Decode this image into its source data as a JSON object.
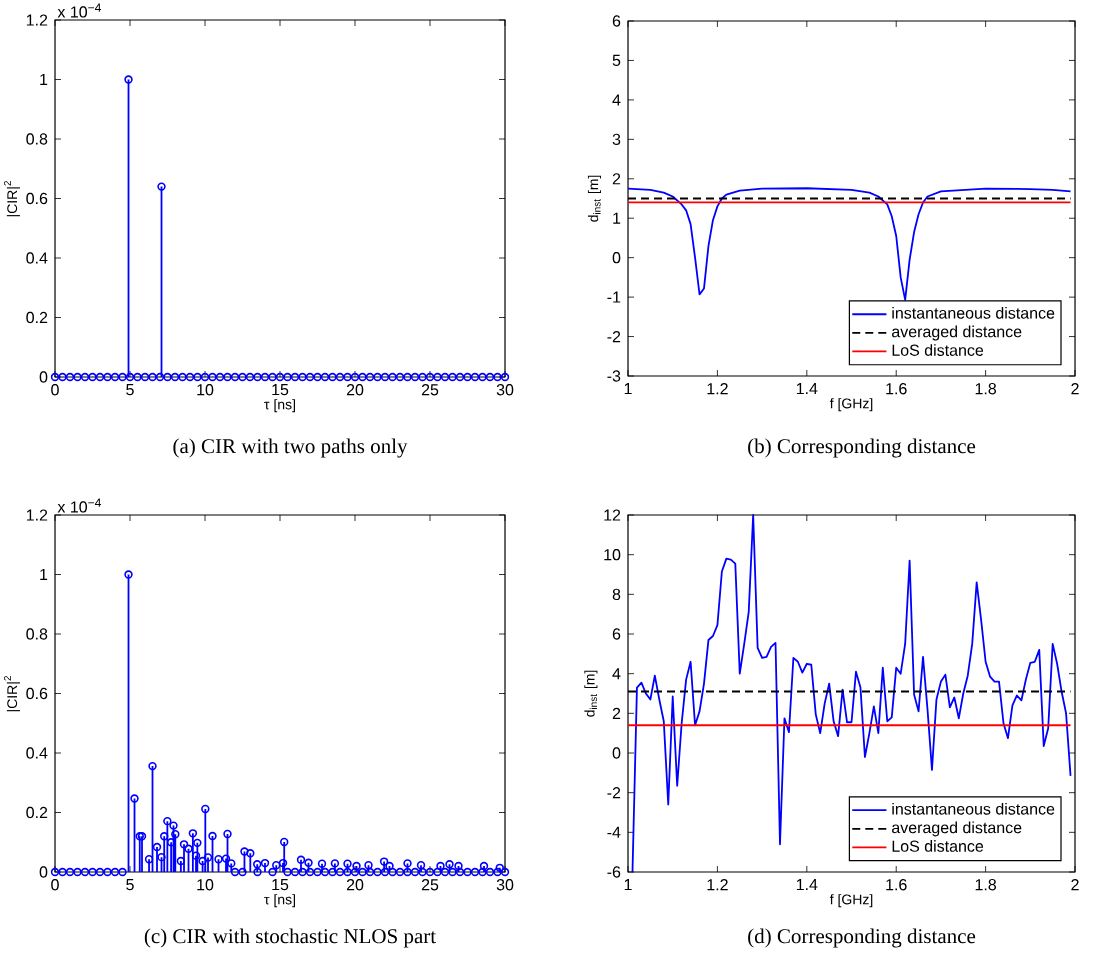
{
  "chart_data": [
    {
      "type": "lollipop",
      "xlabel": "τ [ns]",
      "ylabel": "|CIR|$^{2}$",
      "annotations": [
        "x 10$^{−4}$",
        "(a)  CIR with two paths only"
      ],
      "color": "#0000ff",
      "marker": "circle",
      "xlim": [
        0,
        30
      ],
      "ylim": [
        0,
        1.2
      ],
      "xticks": [
        0,
        5,
        10,
        15,
        20,
        25,
        30
      ],
      "yticks": [
        0,
        0.2,
        0.4,
        0.6,
        0.8,
        1,
        1.2
      ],
      "x": [
        0,
        0.5,
        1,
        1.5,
        2,
        2.5,
        3,
        3.5,
        4,
        4.5,
        4.9,
        5,
        5.5,
        6,
        6.5,
        7,
        7.1,
        7.5,
        8,
        8.5,
        9,
        9.5,
        10,
        10.5,
        11,
        11.5,
        12,
        12.5,
        13,
        13.5,
        14,
        14.5,
        15,
        15.5,
        16,
        16.5,
        17,
        17.5,
        18,
        18.5,
        19,
        19.5,
        20,
        20.5,
        21,
        21.5,
        22,
        22.5,
        23,
        23.5,
        24,
        24.5,
        25,
        25.5,
        26,
        26.5,
        27,
        27.5,
        28,
        28.5,
        29,
        29.5,
        30
      ],
      "values": [
        0,
        0,
        0,
        0,
        0,
        0,
        0,
        0,
        0,
        0,
        1,
        0,
        0,
        0,
        0,
        0,
        0.64,
        0,
        0,
        0,
        0,
        0,
        0,
        0,
        0,
        0,
        0,
        0,
        0,
        0,
        0,
        0,
        0,
        0,
        0,
        0,
        0,
        0,
        0,
        0,
        0,
        0,
        0,
        0,
        0,
        0,
        0,
        0,
        0,
        0,
        0,
        0,
        0,
        0,
        0,
        0,
        0,
        0,
        0,
        0,
        0,
        0,
        0
      ]
    },
    {
      "type": "line",
      "xlabel": "f [GHz]",
      "ylabel": "d$_{inst}$ [m]",
      "annotations": [
        "(b)  Corresponding distance"
      ],
      "legend": "bottom right",
      "xlim": [
        1,
        2
      ],
      "ylim": [
        -3,
        6
      ],
      "xticks": [
        1,
        1.2,
        1.4,
        1.6,
        1.8,
        2
      ],
      "yticks": [
        -3,
        -2,
        -1,
        0,
        1,
        2,
        3,
        4,
        5,
        6
      ],
      "series": [
        {
          "name": "instantaneous distance",
          "color": "#0000ff",
          "line_style": "solid",
          "x": [
            1,
            1.05,
            1.08,
            1.1,
            1.12,
            1.13,
            1.14,
            1.15,
            1.16,
            1.17,
            1.18,
            1.19,
            1.2,
            1.21,
            1.22,
            1.25,
            1.3,
            1.4,
            1.5,
            1.54,
            1.56,
            1.58,
            1.59,
            1.6,
            1.61,
            1.62,
            1.63,
            1.64,
            1.65,
            1.66,
            1.67,
            1.7,
            1.8,
            1.9,
            1.95,
            1.99
          ],
          "values": [
            1.75,
            1.72,
            1.65,
            1.55,
            1.35,
            1.2,
            0.85,
            0,
            -0.93,
            -0.78,
            0.3,
            0.95,
            1.3,
            1.5,
            1.6,
            1.7,
            1.75,
            1.76,
            1.72,
            1.65,
            1.55,
            1.35,
            1.05,
            0.55,
            -0.5,
            -1.07,
            -0.05,
            0.65,
            1.1,
            1.4,
            1.55,
            1.68,
            1.75,
            1.74,
            1.72,
            1.68
          ]
        },
        {
          "name": "averaged distance",
          "color": "#000000",
          "line_style": "dashed",
          "x": [
            1,
            1.99
          ],
          "values": [
            1.5,
            1.5
          ]
        },
        {
          "name": "LoS distance",
          "color": "#ff0000",
          "line_style": "solid",
          "x": [
            1,
            1.99
          ],
          "values": [
            1.4,
            1.4
          ]
        }
      ]
    },
    {
      "type": "lollipop",
      "xlabel": "τ [ns]",
      "ylabel": "|CIR|$^{2}$",
      "annotations": [
        "x 10$^{−4}$",
        "(c)  CIR with stochastic NLOS part"
      ],
      "color": "#0000ff",
      "marker": "circle",
      "xlim": [
        0,
        30
      ],
      "ylim": [
        0,
        1.2
      ],
      "xticks": [
        0,
        5,
        10,
        15,
        20,
        25,
        30
      ],
      "yticks": [
        0,
        0.2,
        0.4,
        0.6,
        0.8,
        1,
        1.2
      ],
      "x": [
        0,
        0.5,
        1,
        1.5,
        2,
        2.5,
        3,
        3.5,
        4,
        4.5,
        4.9,
        5.3,
        5.65,
        5.8,
        6.27,
        6.5,
        6.8,
        7.1,
        7.28,
        7.49,
        7.74,
        7.9,
        8.02,
        8.39,
        8.6,
        8.9,
        9.19,
        9.4,
        9.49,
        9.84,
        10.02,
        10.2,
        10.5,
        10.9,
        11.4,
        11.5,
        11.75,
        12.63,
        13.02,
        13.48,
        14,
        14.75,
        15.2,
        15.28,
        16.4,
        16.9,
        17.8,
        18.66,
        19.5,
        20.1,
        20.9,
        21.94,
        22.3,
        23.5,
        24.4,
        25.7,
        26.3,
        26.9,
        28.6,
        29.65,
        12,
        12.5,
        13.5,
        14.5,
        15.5,
        16,
        16.5,
        17,
        17.5,
        18,
        18.5,
        19,
        19.5,
        20,
        20.5,
        21,
        21.5,
        22,
        22.5,
        23,
        23.5,
        24,
        24.5,
        25,
        25.5,
        26,
        26.5,
        27,
        27.5,
        28,
        28.5,
        29,
        29.5,
        30
      ],
      "values": [
        0,
        0,
        0,
        0,
        0,
        0,
        0,
        0,
        0,
        0,
        1,
        0.247,
        0.12,
        0.12,
        0.043,
        0.356,
        0.084,
        0.05,
        0.12,
        0.171,
        0.1,
        0.156,
        0.127,
        0.037,
        0.093,
        0.078,
        0.13,
        0.055,
        0.098,
        0.037,
        0.212,
        0.049,
        0.121,
        0.043,
        0.045,
        0.128,
        0.029,
        0.069,
        0.063,
        0.026,
        0.03,
        0.023,
        0.03,
        0.101,
        0.041,
        0.031,
        0.028,
        0.029,
        0.028,
        0.02,
        0.023,
        0.035,
        0.02,
        0.029,
        0.023,
        0.02,
        0.026,
        0.02,
        0.02,
        0.014,
        0,
        0,
        0,
        0,
        0,
        0,
        0,
        0,
        0,
        0,
        0,
        0,
        0,
        0,
        0,
        0,
        0,
        0,
        0,
        0,
        0,
        0,
        0,
        0,
        0,
        0,
        0,
        0,
        0,
        0,
        0,
        0,
        0,
        0
      ]
    },
    {
      "type": "line",
      "xlabel": "f [GHz]",
      "ylabel": "d$_{inst}$ [m]",
      "annotations": [
        "(d)  Corresponding distance"
      ],
      "legend": "bottom right",
      "xlim": [
        1,
        2
      ],
      "ylim": [
        -6,
        12
      ],
      "xticks": [
        1,
        1.2,
        1.4,
        1.6,
        1.8,
        2
      ],
      "yticks": [
        -6,
        -4,
        -2,
        0,
        2,
        4,
        6,
        8,
        10,
        12
      ],
      "series": [
        {
          "name": "instantaneous distance",
          "color": "#0000ff",
          "line_style": "solid",
          "x": [
            1.01,
            1.02,
            1.03,
            1.04,
            1.05,
            1.06,
            1.07,
            1.08,
            1.09,
            1.1,
            1.11,
            1.12,
            1.13,
            1.14,
            1.15,
            1.16,
            1.17,
            1.18,
            1.19,
            1.2,
            1.21,
            1.22,
            1.23,
            1.24,
            1.25,
            1.26,
            1.27,
            1.28,
            1.29,
            1.3,
            1.31,
            1.32,
            1.33,
            1.34,
            1.35,
            1.36,
            1.37,
            1.38,
            1.39,
            1.4,
            1.41,
            1.42,
            1.43,
            1.44,
            1.45,
            1.46,
            1.47,
            1.48,
            1.49,
            1.5,
            1.51,
            1.52,
            1.53,
            1.54,
            1.55,
            1.56,
            1.57,
            1.58,
            1.59,
            1.6,
            1.61,
            1.62,
            1.63,
            1.64,
            1.65,
            1.66,
            1.67,
            1.68,
            1.69,
            1.7,
            1.71,
            1.72,
            1.73,
            1.74,
            1.75,
            1.76,
            1.77,
            1.78,
            1.79,
            1.8,
            1.81,
            1.82,
            1.83,
            1.84,
            1.85,
            1.86,
            1.87,
            1.88,
            1.89,
            1.9,
            1.91,
            1.92,
            1.93,
            1.94,
            1.95,
            1.96,
            1.97,
            1.98,
            1.99
          ],
          "values": [
            -6,
            3.3,
            3.55,
            3.0,
            2.7,
            3.9,
            2.7,
            1.6,
            -2.6,
            2.85,
            -1.65,
            1.5,
            3.7,
            4.6,
            1.4,
            2.1,
            3.5,
            5.7,
            5.9,
            6.45,
            9.15,
            9.8,
            9.75,
            9.55,
            4.0,
            5.5,
            7.1,
            12,
            5.3,
            4.8,
            4.85,
            5.35,
            5.55,
            -4.6,
            1.75,
            1.05,
            4.8,
            4.6,
            4.05,
            4.5,
            4.45,
            1.95,
            1.0,
            2.5,
            3.5,
            1.6,
            0.85,
            3.2,
            1.55,
            1.55,
            4.1,
            3.3,
            -0.2,
            1.0,
            2.35,
            1.0,
            4.3,
            1.6,
            1.8,
            4.3,
            4.0,
            5.5,
            9.7,
            2.95,
            2.1,
            4.85,
            2.2,
            -0.85,
            2.7,
            3.6,
            3.95,
            2.3,
            2.8,
            1.75,
            3.0,
            3.9,
            5.5,
            8.6,
            6.7,
            4.6,
            3.85,
            3.6,
            3.6,
            1.5,
            0.75,
            2.4,
            2.9,
            2.65,
            3.7,
            4.55,
            4.6,
            5.2,
            0.35,
            1.25,
            5.5,
            4.5,
            3.1,
            2.0,
            -1.15
          ]
        },
        {
          "name": "averaged distance",
          "color": "#000000",
          "line_style": "dashed",
          "x": [
            1,
            1.99
          ],
          "values": [
            3.1,
            3.1
          ]
        },
        {
          "name": "LoS distance",
          "color": "#ff0000",
          "line_style": "solid",
          "x": [
            1,
            1.99
          ],
          "values": [
            1.4,
            1.4
          ]
        }
      ]
    }
  ]
}
